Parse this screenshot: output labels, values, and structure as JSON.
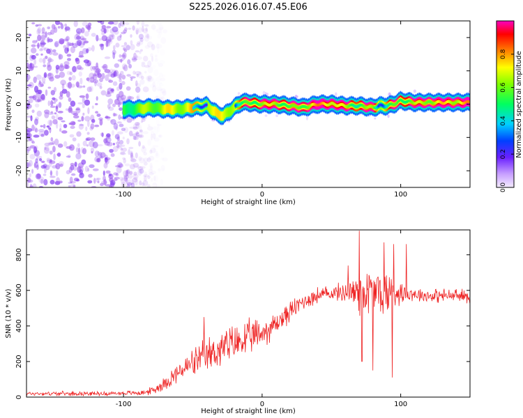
{
  "title": "S225.2026.016.07.45.E06",
  "colors": {
    "snr_line": "#ee2222",
    "noise_dot": "#a060f0",
    "axis": "#000000"
  },
  "chart_data": [
    {
      "type": "heatmap",
      "name": "spectrogram",
      "xlabel": "Height of straight line (km)",
      "ylabel": "Frequency (Hz)",
      "xlim": [
        -170,
        150
      ],
      "ylim": [
        -25,
        25
      ],
      "xticks": [
        -100,
        0,
        100
      ],
      "yticks": [
        -20,
        -10,
        0,
        10,
        20
      ],
      "colorbar": {
        "label": "Normalized spectral amplitude",
        "range": [
          0,
          1
        ],
        "ticks": [
          "0.0",
          "0.2",
          "0.4",
          "0.6",
          "0.8"
        ]
      },
      "ridge": {
        "x": [
          -100,
          -90,
          -80,
          -70,
          -60,
          -50,
          -40,
          -32,
          -28,
          -20,
          -15,
          -10,
          0,
          10,
          20,
          30,
          40,
          50,
          60,
          70,
          80,
          85,
          90,
          95,
          100,
          110,
          120,
          130,
          140,
          150
        ],
        "freq": [
          -1.5,
          -1.5,
          -1.0,
          -1.5,
          -1.5,
          -1.0,
          -0.5,
          -3.0,
          -3.5,
          -1.0,
          0.5,
          0.5,
          0.0,
          0.0,
          -0.5,
          -1.0,
          0.0,
          0.0,
          -0.5,
          -0.5,
          -1.0,
          -0.5,
          -0.5,
          0.0,
          1.0,
          0.5,
          0.5,
          0.5,
          0.5,
          0.5
        ],
        "amp": [
          0.3,
          0.35,
          0.4,
          0.45,
          0.45,
          0.5,
          0.5,
          0.45,
          0.45,
          0.5,
          0.6,
          0.75,
          0.8,
          0.85,
          0.7,
          0.8,
          0.95,
          0.95,
          0.8,
          0.7,
          0.8,
          0.5,
          0.6,
          0.7,
          0.75,
          0.8,
          0.85,
          0.9,
          0.9,
          0.95
        ]
      },
      "noise_region_x": [
        -170,
        -80
      ]
    },
    {
      "type": "line",
      "name": "snr",
      "xlabel": "Height of straight line (km)",
      "ylabel": "SNR (10 * v/v)",
      "xlim": [
        -170,
        150
      ],
      "ylim": [
        0,
        940
      ],
      "xticks": [
        -100,
        0,
        100
      ],
      "yticks": [
        0,
        200,
        400,
        600,
        800
      ],
      "envelope": {
        "x": [
          -170,
          -140,
          -110,
          -85,
          -78,
          -70,
          -60,
          -50,
          -40,
          -30,
          -20,
          -10,
          0,
          10,
          20,
          30,
          40,
          50,
          60,
          70,
          80,
          90,
          100,
          110,
          120,
          130,
          140,
          150
        ],
        "mean": [
          20,
          20,
          20,
          25,
          40,
          80,
          140,
          190,
          230,
          270,
          300,
          330,
          360,
          410,
          480,
          540,
          570,
          585,
          590,
          590,
          590,
          590,
          590,
          580,
          570,
          570,
          570,
          565
        ],
        "spread": [
          12,
          12,
          12,
          15,
          25,
          40,
          60,
          80,
          100,
          110,
          110,
          100,
          90,
          70,
          60,
          50,
          50,
          40,
          60,
          150,
          150,
          150,
          60,
          40,
          40,
          40,
          40,
          40
        ]
      },
      "spikes": [
        {
          "x": -42,
          "y": 450
        },
        {
          "x": 70,
          "y": 935
        },
        {
          "x": 72,
          "y": 200
        },
        {
          "x": 80,
          "y": 150
        },
        {
          "x": 88,
          "y": 870
        },
        {
          "x": 94,
          "y": 110
        },
        {
          "x": 95,
          "y": 860
        },
        {
          "x": 104,
          "y": 860
        },
        {
          "x": 62,
          "y": 740
        }
      ]
    }
  ]
}
